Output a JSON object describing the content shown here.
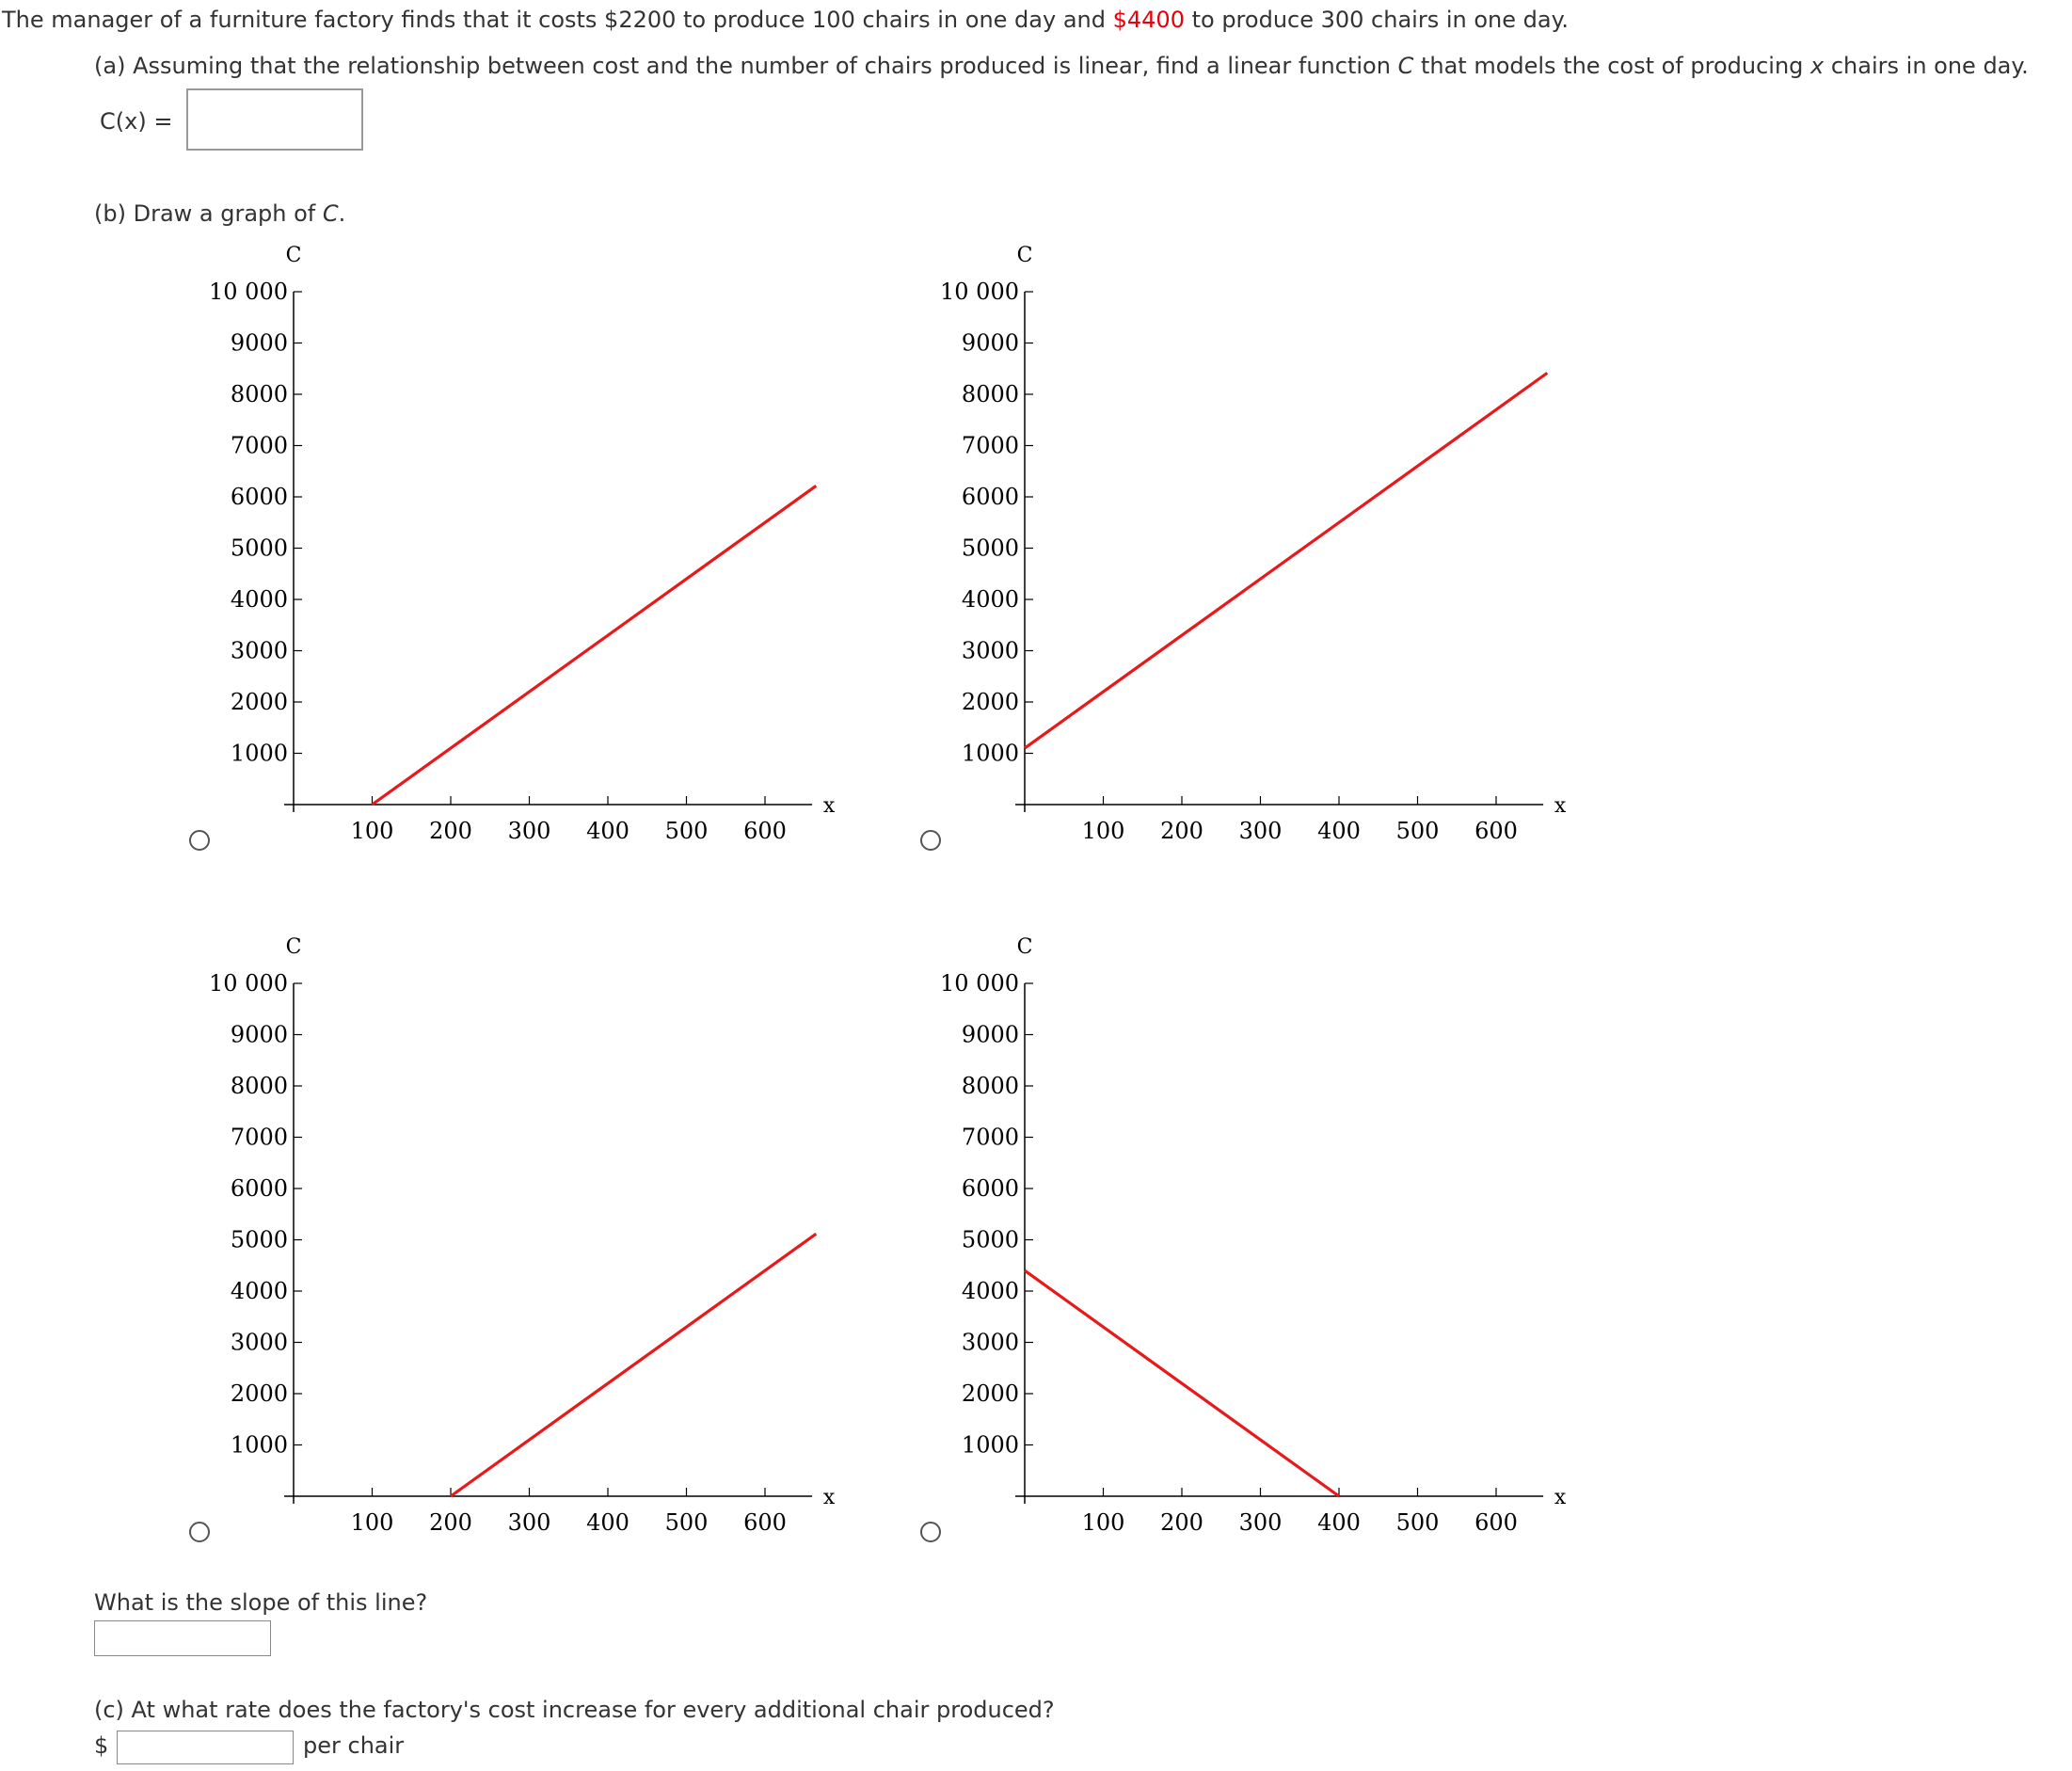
{
  "problem": {
    "intro_part1": "The manager of a furniture factory finds that it costs $2200 to produce 100 chairs in one day and ",
    "intro_highlight": "$4400",
    "intro_part2": " to produce 300 chairs in one day."
  },
  "part_a": {
    "text_part1": "(a) Assuming that the relationship between cost and the number of chairs produced is linear, find a linear function ",
    "text_var_c": "C",
    "text_part2": " that models the cost of producing ",
    "text_var_x": "x",
    "text_part3": " chairs in one day.",
    "answer_label": "C(x)  =",
    "answer_value": ""
  },
  "part_b": {
    "prompt_part1": "(b) Draw a graph of ",
    "prompt_var": "C",
    "prompt_part2": ".",
    "slope_question": "What is the slope of this line?",
    "slope_value": ""
  },
  "part_c": {
    "text": "(c) At what rate does the factory's cost increase for every additional chair produced?",
    "currency": "$",
    "unit": "per chair",
    "value": ""
  },
  "chart_data": [
    {
      "type": "line",
      "option": 1,
      "ylabel": "C",
      "xlabel": "x",
      "xlim": [
        0,
        660
      ],
      "ylim": [
        0,
        10000
      ],
      "x_ticks": [
        100,
        200,
        300,
        400,
        500,
        600
      ],
      "y_ticks": [
        1000,
        2000,
        3000,
        4000,
        5000,
        6000,
        7000,
        8000,
        9000,
        10000
      ],
      "x_tick_labels": [
        "100",
        "200",
        "300",
        "400",
        "500",
        "600"
      ],
      "y_tick_labels": [
        "1000",
        "2000",
        "3000",
        "4000",
        "5000",
        "6000",
        "7000",
        "8000",
        "9000",
        "10 000"
      ],
      "series": [
        {
          "color": "#e8191b",
          "x": [
            100,
            665
          ],
          "y": [
            0,
            6215
          ]
        }
      ]
    },
    {
      "type": "line",
      "option": 2,
      "ylabel": "C",
      "xlabel": "x",
      "xlim": [
        0,
        660
      ],
      "ylim": [
        0,
        10000
      ],
      "x_ticks": [
        100,
        200,
        300,
        400,
        500,
        600
      ],
      "y_ticks": [
        1000,
        2000,
        3000,
        4000,
        5000,
        6000,
        7000,
        8000,
        9000,
        10000
      ],
      "x_tick_labels": [
        "100",
        "200",
        "300",
        "400",
        "500",
        "600"
      ],
      "y_tick_labels": [
        "1000",
        "2000",
        "3000",
        "4000",
        "5000",
        "6000",
        "7000",
        "8000",
        "9000",
        "10 000"
      ],
      "series": [
        {
          "color": "#e8191b",
          "x": [
            0,
            665
          ],
          "y": [
            1100,
            8415
          ]
        }
      ]
    },
    {
      "type": "line",
      "option": 3,
      "ylabel": "C",
      "xlabel": "x",
      "xlim": [
        0,
        660
      ],
      "ylim": [
        0,
        10000
      ],
      "x_ticks": [
        100,
        200,
        300,
        400,
        500,
        600
      ],
      "y_ticks": [
        1000,
        2000,
        3000,
        4000,
        5000,
        6000,
        7000,
        8000,
        9000,
        10000
      ],
      "x_tick_labels": [
        "100",
        "200",
        "300",
        "400",
        "500",
        "600"
      ],
      "y_tick_labels": [
        "1000",
        "2000",
        "3000",
        "4000",
        "5000",
        "6000",
        "7000",
        "8000",
        "9000",
        "10 000"
      ],
      "series": [
        {
          "color": "#e8191b",
          "x": [
            200,
            665
          ],
          "y": [
            0,
            5115
          ]
        }
      ]
    },
    {
      "type": "line",
      "option": 4,
      "ylabel": "C",
      "xlabel": "x",
      "xlim": [
        0,
        660
      ],
      "ylim": [
        0,
        10000
      ],
      "x_ticks": [
        100,
        200,
        300,
        400,
        500,
        600
      ],
      "y_ticks": [
        1000,
        2000,
        3000,
        4000,
        5000,
        6000,
        7000,
        8000,
        9000,
        10000
      ],
      "x_tick_labels": [
        "100",
        "200",
        "300",
        "400",
        "500",
        "600"
      ],
      "y_tick_labels": [
        "1000",
        "2000",
        "3000",
        "4000",
        "5000",
        "6000",
        "7000",
        "8000",
        "9000",
        "10 000"
      ],
      "series": [
        {
          "color": "#e8191b",
          "x": [
            0,
            400
          ],
          "y": [
            4400,
            0
          ]
        }
      ]
    }
  ]
}
